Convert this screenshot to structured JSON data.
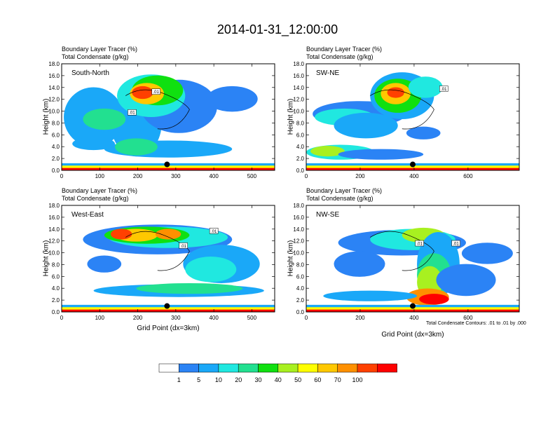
{
  "title": "2014-01-31_12:00:00",
  "chart_data": [
    {
      "type": "heatmap",
      "panel": "South-North",
      "title_lines": [
        "Boundary Layer Tracer   (%)",
        "Total Condensate   (g/kg)"
      ],
      "ylabel": "Height (km)",
      "xlabel": "",
      "xlim": [
        0,
        560
      ],
      "ylim": [
        0,
        18
      ],
      "xticks": [
        0,
        100,
        200,
        300,
        400,
        500
      ],
      "yticks": [
        0.0,
        2.0,
        4.0,
        6.0,
        8.0,
        10.0,
        12.0,
        14.0,
        16.0,
        18.0
      ],
      "contour_labels": [
        {
          "text": ".01",
          "x": 248,
          "y": 13.3
        },
        {
          "text": ".01",
          "x": 185,
          "y": 9.8
        }
      ],
      "marker": {
        "x": 277,
        "y": 1.0
      },
      "color_levels": [
        1,
        5,
        10,
        20,
        30,
        40,
        50,
        60,
        70,
        100
      ]
    },
    {
      "type": "heatmap",
      "panel": "SW-NE",
      "title_lines": [
        "Boundary Layer Tracer   (%)",
        "Total Condensate   (g/kg)"
      ],
      "ylabel": "Height (km)",
      "xlabel": "",
      "xlim": [
        0,
        790
      ],
      "ylim": [
        0,
        18
      ],
      "xticks": [
        0,
        200,
        400,
        600
      ],
      "yticks": [
        0.0,
        2.0,
        4.0,
        6.0,
        8.0,
        10.0,
        12.0,
        14.0,
        16.0,
        18.0
      ],
      "contour_labels": [
        {
          "text": ".01",
          "x": 510,
          "y": 13.8
        }
      ],
      "marker": {
        "x": 395,
        "y": 1.0
      },
      "color_levels": [
        1,
        5,
        10,
        20,
        30,
        40,
        50,
        60,
        70,
        100
      ]
    },
    {
      "type": "heatmap",
      "panel": "West-East",
      "title_lines": [
        "Boundary Layer Tracer   (%)",
        "Total Condensate   (g/kg)"
      ],
      "ylabel": "Height (km)",
      "xlabel": "Grid Point (dx=3km)",
      "xlim": [
        0,
        560
      ],
      "ylim": [
        0,
        18
      ],
      "xticks": [
        0,
        100,
        200,
        300,
        400,
        500
      ],
      "yticks": [
        0.0,
        2.0,
        4.0,
        6.0,
        8.0,
        10.0,
        12.0,
        14.0,
        16.0,
        18.0
      ],
      "contour_labels": [
        {
          "text": ".01",
          "x": 400,
          "y": 13.7
        },
        {
          "text": ".01",
          "x": 320,
          "y": 11.2
        }
      ],
      "marker": {
        "x": 277,
        "y": 1.0
      },
      "color_levels": [
        1,
        5,
        10,
        20,
        30,
        40,
        50,
        60,
        70,
        100
      ]
    },
    {
      "type": "heatmap",
      "panel": "NW-SE",
      "title_lines": [
        "Boundary Layer Tracer   (%)",
        "Total Condensate   (g/kg)"
      ],
      "ylabel": "Height (km)",
      "xlabel": "Grid Point (dx=3km)",
      "xlim": [
        0,
        790
      ],
      "ylim": [
        0,
        18
      ],
      "xticks": [
        0,
        200,
        400,
        600
      ],
      "yticks": [
        0.0,
        2.0,
        4.0,
        6.0,
        8.0,
        10.0,
        12.0,
        14.0,
        16.0,
        18.0
      ],
      "contour_labels": [
        {
          "text": ".01",
          "x": 420,
          "y": 11.6
        },
        {
          "text": ".01",
          "x": 555,
          "y": 11.6
        }
      ],
      "marker": {
        "x": 395,
        "y": 1.0
      },
      "color_levels": [
        1,
        5,
        10,
        20,
        30,
        40,
        50,
        60,
        70,
        100
      ]
    }
  ],
  "note": "Total Condensate Contours: .01 to .01 by .000",
  "colorbar": {
    "labels": [
      "1",
      "5",
      "10",
      "20",
      "30",
      "40",
      "50",
      "60",
      "70",
      "100"
    ],
    "colors": [
      "#ffffff",
      "#2b83f5",
      "#1aa8f8",
      "#20e8e0",
      "#22e090",
      "#10e010",
      "#a8f020",
      "#ffff00",
      "#ffc800",
      "#ff9000",
      "#ff4000",
      "#ff0000"
    ]
  }
}
